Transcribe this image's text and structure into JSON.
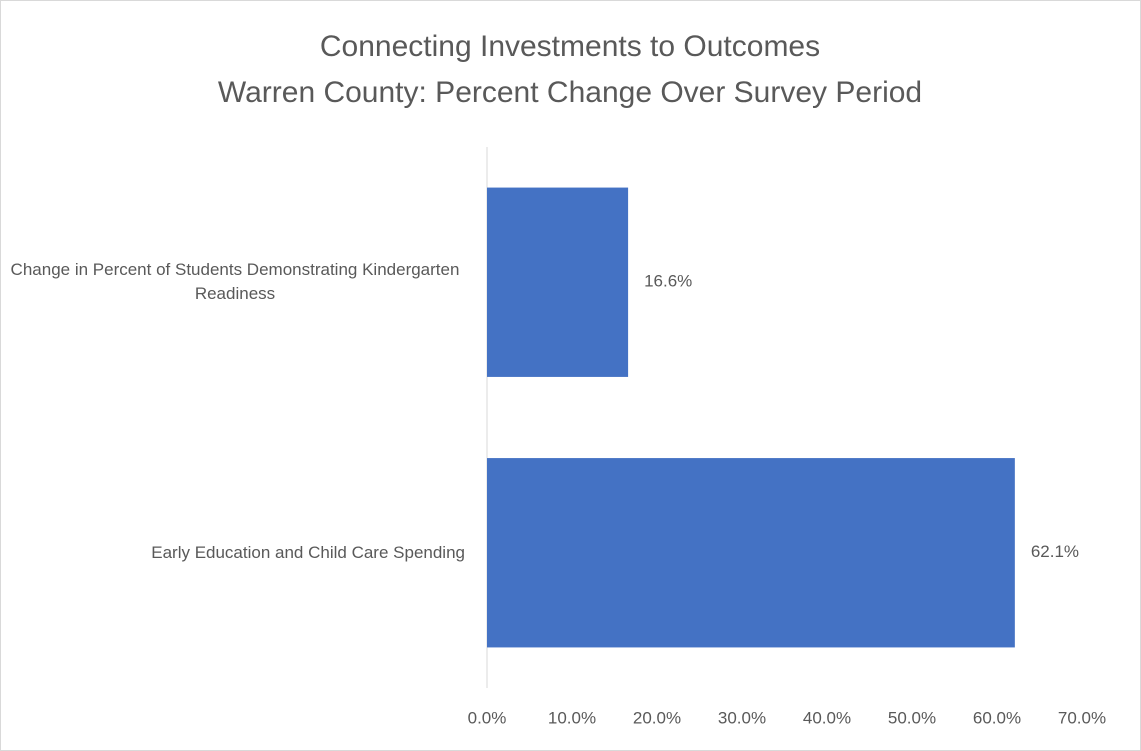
{
  "chart_data": {
    "type": "hbar",
    "title": [
      "Connecting Investments to Outcomes",
      "Warren County: Percent Change Over Survey Period"
    ],
    "categories": [
      "Change in Percent of Students Demonstrating Kindergarten Readiness",
      "Early Education and Child Care Spending"
    ],
    "values": [
      16.6,
      62.1
    ],
    "value_labels": [
      "16.6%",
      "62.1%"
    ],
    "color": "#4472c4",
    "xlim": [
      0,
      70
    ],
    "xticks": [
      {
        "value": 0,
        "label": "0.0%"
      },
      {
        "value": 10,
        "label": "10.0%"
      },
      {
        "value": 20,
        "label": "20.0%"
      },
      {
        "value": 30,
        "label": "30.0%"
      },
      {
        "value": 40,
        "label": "40.0%"
      },
      {
        "value": 50,
        "label": "50.0%"
      },
      {
        "value": 60,
        "label": "60.0%"
      },
      {
        "value": 70,
        "label": "70.0%"
      }
    ],
    "grid": false
  }
}
